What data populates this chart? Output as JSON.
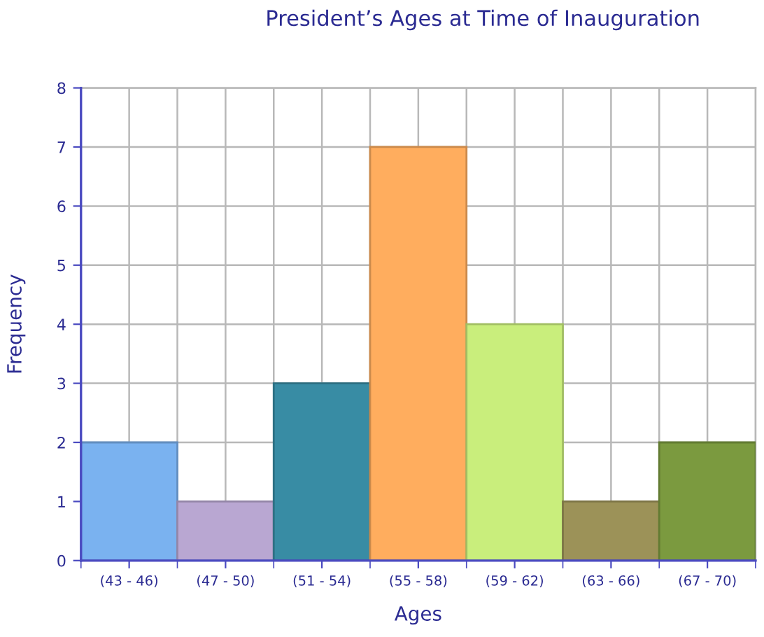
{
  "chart_data": {
    "type": "bar",
    "title": "President’s Ages at Time of Inauguration",
    "xlabel": "Ages",
    "ylabel": "Frequency",
    "categories": [
      "(43 - 46)",
      "(47 - 50)",
      "(51 - 54)",
      "(55 - 58)",
      "(59 - 62)",
      "(63 - 66)",
      "(67 - 70)"
    ],
    "values": [
      2,
      1,
      3,
      7,
      4,
      1,
      2
    ],
    "colors": [
      "#7ab2f0",
      "#b9a7d2",
      "#388ca4",
      "#ffad5e",
      "#c9ee7c",
      "#9c9258",
      "#7b9a3f"
    ],
    "ylim": [
      0,
      8
    ],
    "yticks": [
      0,
      1,
      2,
      3,
      4,
      5,
      6,
      7,
      8
    ],
    "grid": true
  }
}
